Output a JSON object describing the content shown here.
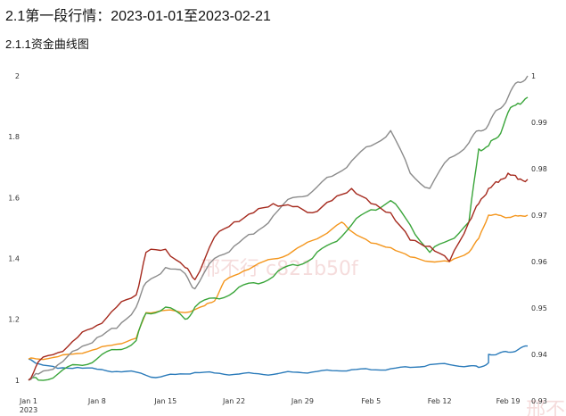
{
  "header": {
    "section_title": "2.1第一段行情：2023-01-01至2023-02-21",
    "subsection_title": "2.1.1资金曲线图"
  },
  "watermark": {
    "main": "邢不行 c821b50f",
    "corner": "邢不行"
  },
  "chart_data": {
    "type": "line",
    "title": "",
    "xlabel": "",
    "ylabel": "",
    "x_ticks": [
      "Jan 1\n2023",
      "Jan 8",
      "Jan 15",
      "Jan 22",
      "Jan 29",
      "Feb 5",
      "Feb 12",
      "Feb 19"
    ],
    "x_range": [
      "2023-01-01",
      "2023-02-21"
    ],
    "y_left": {
      "ticks": [
        "1",
        "1.2",
        "1.4",
        "1.6",
        "1.8",
        "2"
      ],
      "range": [
        0.97,
        2.0
      ]
    },
    "y_right": {
      "ticks": [
        "0.93",
        "0.94",
        "0.95",
        "0.96",
        "0.97",
        "0.98",
        "0.99",
        "1"
      ],
      "range": [
        0.9325,
        1.0
      ]
    },
    "grid": false,
    "legend": "none",
    "series": [
      {
        "color": "#2b7bba",
        "axis": "right",
        "points": [
          [
            "2023-01-01",
            0.939
          ],
          [
            "2023-01-02",
            0.938
          ],
          [
            "2023-01-04",
            0.937
          ],
          [
            "2023-01-06",
            0.9372
          ],
          [
            "2023-01-08",
            0.9368
          ],
          [
            "2023-01-10",
            0.9363
          ],
          [
            "2023-01-12",
            0.9362
          ],
          [
            "2023-01-14",
            0.935
          ],
          [
            "2023-01-16",
            0.9357
          ],
          [
            "2023-01-18",
            0.9361
          ],
          [
            "2023-01-20",
            0.936
          ],
          [
            "2023-01-22",
            0.9357
          ],
          [
            "2023-01-24",
            0.9359
          ],
          [
            "2023-01-26",
            0.9357
          ],
          [
            "2023-01-28",
            0.9362
          ],
          [
            "2023-01-30",
            0.9362
          ],
          [
            "2023-02-01",
            0.9365
          ],
          [
            "2023-02-03",
            0.9367
          ],
          [
            "2023-02-05",
            0.9367
          ],
          [
            "2023-02-07",
            0.9369
          ],
          [
            "2023-02-09",
            0.9372
          ],
          [
            "2023-02-11",
            0.9378
          ],
          [
            "2023-02-13",
            0.9378
          ],
          [
            "2023-02-15",
            0.9375
          ],
          [
            "2023-02-16",
            0.9372
          ],
          [
            "2023-02-17",
            0.9382
          ],
          [
            "2023-02-17",
            0.94
          ],
          [
            "2023-02-18",
            0.9402
          ],
          [
            "2023-02-19",
            0.9405
          ],
          [
            "2023-02-20",
            0.941
          ],
          [
            "2023-02-21",
            0.9418
          ]
        ]
      },
      {
        "color": "#f4961d",
        "axis": "right",
        "points": [
          [
            "2023-01-01",
            0.939
          ],
          [
            "2023-01-02",
            0.939
          ],
          [
            "2023-01-04",
            0.9395
          ],
          [
            "2023-01-06",
            0.9402
          ],
          [
            "2023-01-08",
            0.9412
          ],
          [
            "2023-01-10",
            0.9422
          ],
          [
            "2023-01-12",
            0.9435
          ],
          [
            "2023-01-13",
            0.949
          ],
          [
            "2023-01-15",
            0.9495
          ],
          [
            "2023-01-17",
            0.949
          ],
          [
            "2023-01-19",
            0.9505
          ],
          [
            "2023-01-20",
            0.9515
          ],
          [
            "2023-01-21",
            0.9558
          ],
          [
            "2023-01-23",
            0.958
          ],
          [
            "2023-01-25",
            0.96
          ],
          [
            "2023-01-27",
            0.961
          ],
          [
            "2023-01-29",
            0.9635
          ],
          [
            "2023-01-31",
            0.9655
          ],
          [
            "2023-02-02",
            0.9685
          ],
          [
            "2023-02-03",
            0.9665
          ],
          [
            "2023-02-05",
            0.964
          ],
          [
            "2023-02-07",
            0.963
          ],
          [
            "2023-02-09",
            0.961
          ],
          [
            "2023-02-11",
            0.96
          ],
          [
            "2023-02-13",
            0.96
          ],
          [
            "2023-02-15",
            0.962
          ],
          [
            "2023-02-16",
            0.965
          ],
          [
            "2023-02-17",
            0.97
          ],
          [
            "2023-02-18",
            0.97
          ],
          [
            "2023-02-19",
            0.9695
          ],
          [
            "2023-02-20",
            0.9698
          ],
          [
            "2023-02-21",
            0.97
          ]
        ]
      },
      {
        "color": "#3aa53a",
        "axis": "left",
        "points": [
          [
            "2023-01-01",
            1.0
          ],
          [
            "2023-01-02",
            1.0
          ],
          [
            "2023-01-04",
            1.02
          ],
          [
            "2023-01-06",
            1.05
          ],
          [
            "2023-01-08",
            1.07
          ],
          [
            "2023-01-10",
            1.1
          ],
          [
            "2023-01-12",
            1.13
          ],
          [
            "2023-01-13",
            1.22
          ],
          [
            "2023-01-15",
            1.24
          ],
          [
            "2023-01-17",
            1.2
          ],
          [
            "2023-01-18",
            1.24
          ],
          [
            "2023-01-20",
            1.27
          ],
          [
            "2023-01-22",
            1.29
          ],
          [
            "2023-01-24",
            1.32
          ],
          [
            "2023-01-26",
            1.34
          ],
          [
            "2023-01-28",
            1.38
          ],
          [
            "2023-01-30",
            1.4
          ],
          [
            "2023-02-01",
            1.45
          ],
          [
            "2023-02-03",
            1.51
          ],
          [
            "2023-02-05",
            1.56
          ],
          [
            "2023-02-07",
            1.59
          ],
          [
            "2023-02-09",
            1.51
          ],
          [
            "2023-02-11",
            1.42
          ],
          [
            "2023-02-13",
            1.46
          ],
          [
            "2023-02-15",
            1.52
          ],
          [
            "2023-02-16",
            1.76
          ],
          [
            "2023-02-17",
            1.77
          ],
          [
            "2023-02-18",
            1.8
          ],
          [
            "2023-02-19",
            1.88
          ],
          [
            "2023-02-20",
            1.91
          ],
          [
            "2023-02-21",
            1.93
          ]
        ]
      },
      {
        "color": "#8b8b8b",
        "axis": "left",
        "points": [
          [
            "2023-01-01",
            1.0
          ],
          [
            "2023-01-02",
            1.02
          ],
          [
            "2023-01-04",
            1.05
          ],
          [
            "2023-01-06",
            1.1
          ],
          [
            "2023-01-08",
            1.14
          ],
          [
            "2023-01-10",
            1.17
          ],
          [
            "2023-01-12",
            1.24
          ],
          [
            "2023-01-13",
            1.32
          ],
          [
            "2023-01-15",
            1.37
          ],
          [
            "2023-01-17",
            1.35
          ],
          [
            "2023-01-18",
            1.3
          ],
          [
            "2023-01-20",
            1.4
          ],
          [
            "2023-01-22",
            1.44
          ],
          [
            "2023-01-24",
            1.48
          ],
          [
            "2023-01-26",
            1.54
          ],
          [
            "2023-01-28",
            1.6
          ],
          [
            "2023-01-30",
            1.62
          ],
          [
            "2023-02-01",
            1.67
          ],
          [
            "2023-02-03",
            1.72
          ],
          [
            "2023-02-05",
            1.77
          ],
          [
            "2023-02-07",
            1.82
          ],
          [
            "2023-02-09",
            1.68
          ],
          [
            "2023-02-11",
            1.63
          ],
          [
            "2023-02-13",
            1.73
          ],
          [
            "2023-02-15",
            1.78
          ],
          [
            "2023-02-16",
            1.82
          ],
          [
            "2023-02-17",
            1.84
          ],
          [
            "2023-02-18",
            1.89
          ],
          [
            "2023-02-19",
            1.93
          ],
          [
            "2023-02-20",
            1.98
          ],
          [
            "2023-02-21",
            2.0
          ]
        ]
      },
      {
        "color": "#a52a1e",
        "axis": "left",
        "points": [
          [
            "2023-01-01",
            1.0
          ],
          [
            "2023-01-02",
            1.06
          ],
          [
            "2023-01-04",
            1.09
          ],
          [
            "2023-01-06",
            1.14
          ],
          [
            "2023-01-08",
            1.18
          ],
          [
            "2023-01-10",
            1.24
          ],
          [
            "2023-01-12",
            1.28
          ],
          [
            "2023-01-13",
            1.42
          ],
          [
            "2023-01-15",
            1.43
          ],
          [
            "2023-01-17",
            1.37
          ],
          [
            "2023-01-18",
            1.33
          ],
          [
            "2023-01-20",
            1.47
          ],
          [
            "2023-01-22",
            1.52
          ],
          [
            "2023-01-24",
            1.55
          ],
          [
            "2023-01-26",
            1.58
          ],
          [
            "2023-01-28",
            1.57
          ],
          [
            "2023-01-30",
            1.55
          ],
          [
            "2023-02-01",
            1.59
          ],
          [
            "2023-02-03",
            1.63
          ],
          [
            "2023-02-05",
            1.58
          ],
          [
            "2023-02-07",
            1.55
          ],
          [
            "2023-02-09",
            1.46
          ],
          [
            "2023-02-11",
            1.44
          ],
          [
            "2023-02-13",
            1.39
          ],
          [
            "2023-02-15",
            1.52
          ],
          [
            "2023-02-16",
            1.58
          ],
          [
            "2023-02-17",
            1.63
          ],
          [
            "2023-02-18",
            1.65
          ],
          [
            "2023-02-19",
            1.68
          ],
          [
            "2023-02-20",
            1.66
          ],
          [
            "2023-02-21",
            1.66
          ]
        ]
      }
    ]
  }
}
